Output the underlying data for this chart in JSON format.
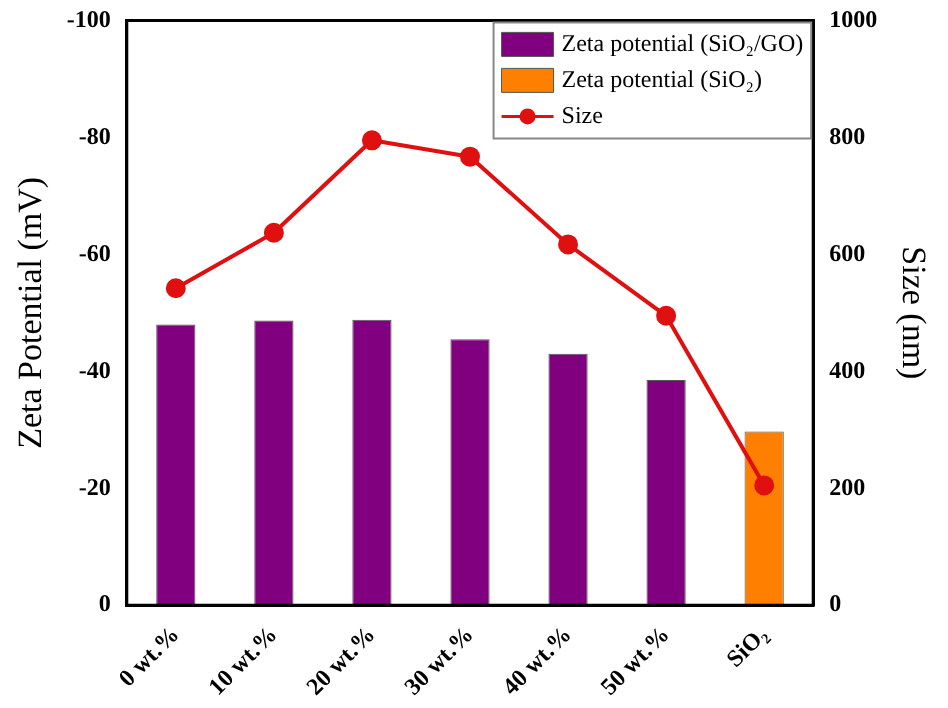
{
  "chart_data": {
    "type": "bar",
    "ylabel": "Zeta Potential (mV)",
    "y2label": "Size (nm)",
    "categories": [
      "0 wt.%",
      "10 wt.%",
      "20 wt.%",
      "30 wt.%",
      "40 wt.%",
      "50 wt.%",
      "SiO₂"
    ],
    "series": [
      {
        "name": "Zeta potential (SiO₂/GO)",
        "color": "#800080",
        "values": [
          -48,
          -48.7,
          -48.8,
          -45.5,
          -43,
          -38.5,
          null
        ]
      },
      {
        "name": "Zeta potential (SiO₂)",
        "color": "#ff8000",
        "values": [
          null,
          null,
          null,
          null,
          null,
          null,
          -29.7
        ]
      },
      {
        "name": "Size",
        "type": "line",
        "axis": "y2",
        "color": "#e01010",
        "marker": "circle",
        "line_style": "solid",
        "values": [
          542,
          637,
          795,
          767,
          617,
          495,
          205
        ]
      }
    ],
    "ylim": [
      0,
      -100
    ],
    "yticks": [
      0,
      -20,
      -40,
      -60,
      -80,
      -100
    ],
    "y2lim": [
      0,
      1000
    ],
    "y2ticks": [
      0,
      200,
      400,
      600,
      800,
      1000
    ],
    "grid": false,
    "legend": "top right"
  }
}
